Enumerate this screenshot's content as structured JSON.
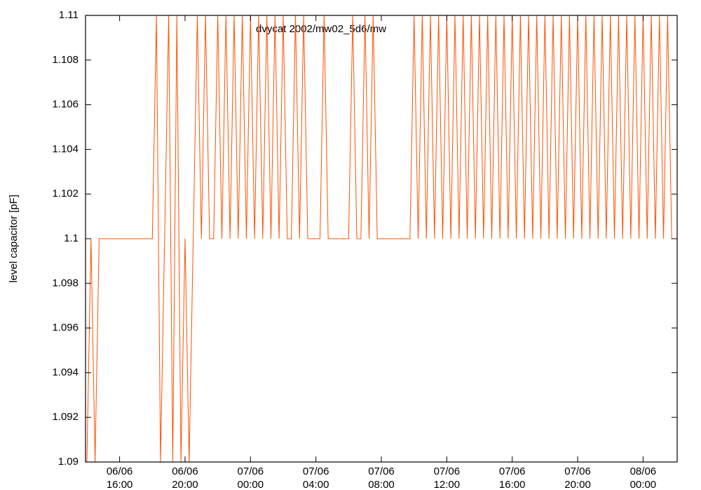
{
  "chart_data": {
    "type": "line",
    "title": "dvycat 2002/mw02_5d6/mw",
    "y_label": "level capacitor [pF]",
    "x": [
      "06/06 14:00",
      "06/06 14:15",
      "06/06 14:30",
      "06/06 14:45",
      "06/06 15:00",
      "06/06 15:15",
      "06/06 15:30",
      "06/06 15:45",
      "06/06 16:00",
      "06/06 16:15",
      "06/06 16:30",
      "06/06 16:45",
      "06/06 17:00",
      "06/06 17:15",
      "06/06 17:30",
      "06/06 17:45",
      "06/06 18:00",
      "06/06 18:15",
      "06/06 18:30",
      "06/06 18:45",
      "06/06 19:00",
      "06/06 19:15",
      "06/06 19:30",
      "06/06 19:45",
      "06/06 20:00",
      "06/06 20:15",
      "06/06 20:30",
      "06/06 20:45",
      "06/06 21:00",
      "06/06 21:15",
      "06/06 21:30",
      "06/06 21:45",
      "06/06 22:00",
      "06/06 22:15",
      "06/06 22:30",
      "06/06 22:45",
      "06/06 23:00",
      "06/06 23:15",
      "06/06 23:30",
      "06/06 23:45",
      "07/06 00:00",
      "07/06 00:15",
      "07/06 00:30",
      "07/06 00:45",
      "07/06 01:00",
      "07/06 01:15",
      "07/06 01:30",
      "07/06 01:45",
      "07/06 02:00",
      "07/06 02:15",
      "07/06 02:30",
      "07/06 02:45",
      "07/06 03:00",
      "07/06 03:15",
      "07/06 03:30",
      "07/06 03:45",
      "07/06 04:00",
      "07/06 04:15",
      "07/06 04:30",
      "07/06 04:45",
      "07/06 05:00",
      "07/06 05:15",
      "07/06 05:30",
      "07/06 05:45",
      "07/06 06:00",
      "07/06 06:15",
      "07/06 06:30",
      "07/06 06:45",
      "07/06 07:00",
      "07/06 07:15",
      "07/06 07:30",
      "07/06 07:45",
      "07/06 08:00",
      "07/06 08:15",
      "07/06 08:30",
      "07/06 08:45",
      "07/06 09:00",
      "07/06 09:15",
      "07/06 09:30",
      "07/06 09:45",
      "07/06 10:00",
      "07/06 10:15",
      "07/06 10:30",
      "07/06 10:45",
      "07/06 11:00",
      "07/06 11:15",
      "07/06 11:30",
      "07/06 11:45",
      "07/06 12:00",
      "07/06 12:15",
      "07/06 12:30",
      "07/06 12:45",
      "07/06 13:00",
      "07/06 13:15",
      "07/06 13:30",
      "07/06 13:45",
      "07/06 14:00",
      "07/06 14:15",
      "07/06 14:30",
      "07/06 14:45",
      "07/06 15:00",
      "07/06 15:15",
      "07/06 15:30",
      "07/06 15:45",
      "07/06 16:00",
      "07/06 16:15",
      "07/06 16:30",
      "07/06 16:45",
      "07/06 17:00",
      "07/06 17:15",
      "07/06 17:30",
      "07/06 17:45",
      "07/06 18:00",
      "07/06 18:15",
      "07/06 18:30",
      "07/06 18:45",
      "07/06 19:00",
      "07/06 19:15",
      "07/06 19:30",
      "07/06 19:45",
      "07/06 20:00",
      "07/06 20:15",
      "07/06 20:30",
      "07/06 20:45",
      "07/06 21:00",
      "07/06 21:15",
      "07/06 21:30",
      "07/06 21:45",
      "07/06 22:00",
      "07/06 22:15",
      "07/06 22:30",
      "07/06 22:45",
      "07/06 23:00",
      "07/06 23:15",
      "07/06 23:30",
      "07/06 23:45",
      "08/06 00:00",
      "08/06 00:15",
      "08/06 00:30",
      "08/06 00:45",
      "08/06 01:00",
      "08/06 01:15",
      "08/06 01:30",
      "08/06 01:45",
      "08/06 02:00"
    ],
    "series": [
      {
        "color": "#ff5000",
        "values": [
          1.09,
          1.1,
          1.09,
          1.1,
          1.1,
          1.1,
          1.1,
          1.1,
          1.1,
          1.1,
          1.1,
          1.1,
          1.1,
          1.1,
          1.1,
          1.1,
          1.1,
          1.11,
          1.09,
          1.1,
          1.11,
          1.09,
          1.11,
          1.09,
          1.1,
          1.09,
          1.1,
          1.11,
          1.1,
          1.11,
          1.1,
          1.1,
          1.11,
          1.1,
          1.11,
          1.1,
          1.11,
          1.1,
          1.11,
          1.1,
          1.11,
          1.1,
          1.11,
          1.1,
          1.11,
          1.1,
          1.11,
          1.1,
          1.11,
          1.1,
          1.1,
          1.11,
          1.1,
          1.11,
          1.1,
          1.1,
          1.1,
          1.1,
          1.11,
          1.1,
          1.1,
          1.1,
          1.1,
          1.1,
          1.1,
          1.11,
          1.1,
          1.1,
          1.11,
          1.1,
          1.11,
          1.1,
          1.1,
          1.1,
          1.1,
          1.1,
          1.1,
          1.1,
          1.1,
          1.1,
          1.11,
          1.1,
          1.11,
          1.1,
          1.11,
          1.1,
          1.11,
          1.1,
          1.11,
          1.1,
          1.11,
          1.1,
          1.11,
          1.1,
          1.11,
          1.1,
          1.11,
          1.1,
          1.11,
          1.1,
          1.11,
          1.1,
          1.11,
          1.1,
          1.11,
          1.1,
          1.11,
          1.1,
          1.11,
          1.1,
          1.11,
          1.1,
          1.11,
          1.1,
          1.11,
          1.1,
          1.11,
          1.1,
          1.11,
          1.1,
          1.11,
          1.1,
          1.11,
          1.1,
          1.11,
          1.1,
          1.11,
          1.1,
          1.11,
          1.1,
          1.11,
          1.1,
          1.11,
          1.1,
          1.11,
          1.1,
          1.11,
          1.1,
          1.11,
          1.1,
          1.11,
          1.1,
          1.11,
          1.1,
          1.1
        ]
      }
    ],
    "xlim": [
      "06/06 13:55",
      "08/06 02:05"
    ],
    "xticks": [
      {
        "value": "06/06 16:00",
        "label": [
          "06/06",
          "16:00"
        ]
      },
      {
        "value": "06/06 20:00",
        "label": [
          "06/06",
          "20:00"
        ]
      },
      {
        "value": "07/06 00:00",
        "label": [
          "07/06",
          "00:00"
        ]
      },
      {
        "value": "07/06 04:00",
        "label": [
          "07/06",
          "04:00"
        ]
      },
      {
        "value": "07/06 08:00",
        "label": [
          "07/06",
          "08:00"
        ]
      },
      {
        "value": "07/06 12:00",
        "label": [
          "07/06",
          "12:00"
        ]
      },
      {
        "value": "07/06 16:00",
        "label": [
          "07/06",
          "16:00"
        ]
      },
      {
        "value": "07/06 20:00",
        "label": [
          "07/06",
          "20:00"
        ]
      },
      {
        "value": "08/06 00:00",
        "label": [
          "08/06",
          "00:00"
        ]
      }
    ],
    "ylim": [
      1.09,
      1.11
    ],
    "yticks": [
      1.09,
      1.092,
      1.094,
      1.096,
      1.098,
      1.1,
      1.102,
      1.104,
      1.106,
      1.108,
      1.11
    ],
    "grid": false
  }
}
